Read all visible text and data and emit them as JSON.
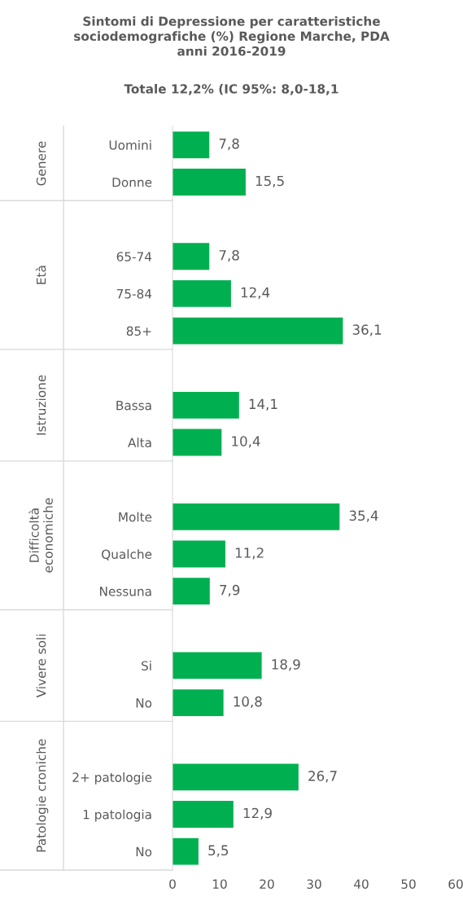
{
  "chart_data": {
    "type": "bar",
    "orientation": "horizontal",
    "title": "Sintomi di Depressione per caratteristiche\nsociodemografiche (%) Regione Marche, PDA\nanni 2016-2019",
    "subtitle": "Totale 12,2% (IC 95%: 8,0-18,1",
    "categories": [
      "Uomini",
      "Donne",
      null,
      "65-74",
      "75-84",
      "85+",
      null,
      "Bassa",
      "Alta",
      null,
      "Molte",
      "Qualche",
      "Nessuna",
      null,
      "Si",
      "No",
      null,
      "2+ patologie",
      "1 patologia",
      "No"
    ],
    "values": [
      7.8,
      15.5,
      null,
      7.8,
      12.4,
      36.1,
      null,
      14.1,
      10.4,
      null,
      35.4,
      11.2,
      7.9,
      null,
      18.9,
      10.8,
      null,
      26.7,
      12.9,
      5.5
    ],
    "value_labels": [
      "7,8",
      "15,5",
      null,
      "7,8",
      "12,4",
      "36,1",
      null,
      "14,1",
      "10,4",
      null,
      "35,4",
      "11,2",
      "7,9",
      null,
      "18,9",
      "10,8",
      null,
      "26,7",
      "12,9",
      "5,5"
    ],
    "color": "#00b050",
    "annotations": [
      "Genere",
      "Età",
      "Istruzione",
      "Difficoltà\neconomiche",
      "Vivere soli",
      "Patologie croniche"
    ],
    "xlim": [
      0,
      60
    ],
    "xticks": [
      0,
      10,
      20,
      30,
      40,
      50,
      60
    ],
    "grid": false,
    "legend": false
  }
}
